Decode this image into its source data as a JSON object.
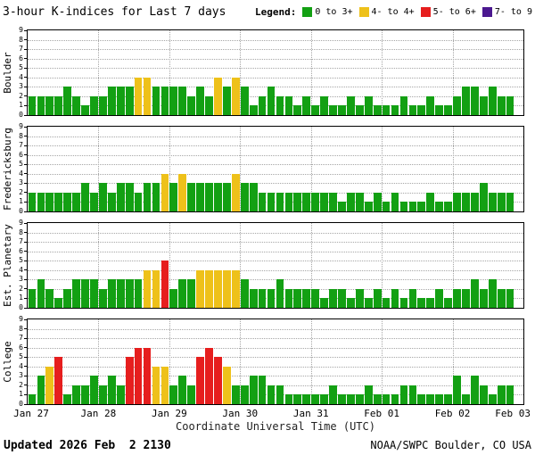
{
  "title": "3-hour K-indices for Last 7 days",
  "legend": {
    "label": "Legend:",
    "items": [
      {
        "label": "0 to 3+",
        "color": "#13A013"
      },
      {
        "label": "4- to 4+",
        "color": "#EEC11A"
      },
      {
        "label": "5- to 6+",
        "color": "#E61E1E"
      },
      {
        "label": "7- to 9",
        "color": "#4B188F"
      }
    ]
  },
  "chart_data": {
    "type": "bar",
    "title": "3-hour K-indices for Last 7 days",
    "xlabel": "Coordinate Universal Time (UTC)",
    "ylim": [
      0,
      9
    ],
    "y_ticks": [
      0,
      1,
      2,
      3,
      4,
      5,
      6,
      7,
      8,
      9
    ],
    "days": 7,
    "bars_per_day": 8,
    "x_tick_labels": [
      "Jan 27",
      "Jan 28",
      "Jan 29",
      "Jan 30",
      "Jan 31",
      "Feb 01",
      "Feb 02",
      "Feb 03"
    ],
    "grid": "dotted",
    "color_scale": [
      {
        "range": "0 to 3+",
        "min": 0,
        "max": 3,
        "color": "#13A013"
      },
      {
        "range": "4- to 4+",
        "min": 4,
        "max": 4,
        "color": "#EEC11A"
      },
      {
        "range": "5- to 6+",
        "min": 5,
        "max": 6,
        "color": "#E61E1E"
      },
      {
        "range": "7- to 9",
        "min": 7,
        "max": 9,
        "color": "#4B188F"
      }
    ],
    "stations": [
      {
        "name": "Boulder",
        "values": [
          2,
          2,
          2,
          2,
          3,
          2,
          1,
          2,
          2,
          3,
          3,
          3,
          4,
          4,
          3,
          3,
          3,
          3,
          2,
          3,
          2,
          4,
          3,
          4,
          3,
          1,
          2,
          3,
          2,
          2,
          1,
          2,
          1,
          2,
          1,
          1,
          2,
          1,
          2,
          1,
          1,
          1,
          2,
          1,
          1,
          2,
          1,
          1,
          2,
          3,
          3,
          2,
          3,
          2,
          2
        ]
      },
      {
        "name": "Fredericksburg",
        "values": [
          2,
          2,
          2,
          2,
          2,
          2,
          3,
          2,
          3,
          2,
          3,
          3,
          2,
          3,
          3,
          4,
          3,
          4,
          3,
          3,
          3,
          3,
          3,
          4,
          3,
          3,
          2,
          2,
          2,
          2,
          2,
          2,
          2,
          2,
          2,
          1,
          2,
          2,
          1,
          2,
          1,
          2,
          1,
          1,
          1,
          2,
          1,
          1,
          2,
          2,
          2,
          3,
          2,
          2,
          2
        ]
      },
      {
        "name": "Est. Planetary",
        "values": [
          2,
          3,
          2,
          1,
          2,
          3,
          3,
          3,
          2,
          3,
          3,
          3,
          3,
          4,
          4,
          5,
          2,
          3,
          3,
          4,
          4,
          4,
          4,
          4,
          3,
          2,
          2,
          2,
          3,
          2,
          2,
          2,
          2,
          1,
          2,
          2,
          1,
          2,
          1,
          2,
          1,
          2,
          1,
          2,
          1,
          1,
          2,
          1,
          2,
          2,
          3,
          2,
          3,
          2,
          2
        ]
      },
      {
        "name": "College",
        "values": [
          1,
          3,
          4,
          5,
          1,
          2,
          2,
          3,
          2,
          3,
          2,
          5,
          6,
          6,
          4,
          4,
          2,
          3,
          2,
          5,
          6,
          5,
          4,
          2,
          2,
          3,
          3,
          2,
          2,
          1,
          1,
          1,
          1,
          1,
          2,
          1,
          1,
          1,
          2,
          1,
          1,
          1,
          2,
          2,
          1,
          1,
          1,
          1,
          3,
          1,
          3,
          2,
          1,
          2,
          2
        ]
      }
    ]
  },
  "footer": {
    "updated": "Updated 2026 Feb  2 2130",
    "source": "NOAA/SWPC Boulder, CO USA"
  }
}
